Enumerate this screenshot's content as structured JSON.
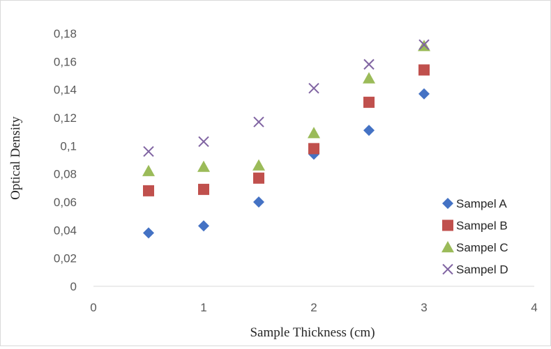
{
  "chart_data": {
    "type": "scatter",
    "title": "",
    "xlabel": "Sample Thickness (cm)",
    "ylabel": "Optical Density",
    "xlim": [
      0,
      4
    ],
    "ylim": [
      0,
      0.18
    ],
    "x_ticks": [
      "0",
      "1",
      "2",
      "3",
      "4"
    ],
    "y_ticks": [
      "0",
      "0,02",
      "0,04",
      "0,06",
      "0,08",
      "0,1",
      "0,12",
      "0,14",
      "0,16",
      "0,18"
    ],
    "grid": false,
    "legend_position": "bottom-right",
    "series": [
      {
        "name": "Sampel A",
        "marker": "diamond",
        "color": "#4472C4",
        "x": [
          0.5,
          1,
          1.5,
          2,
          2.5,
          3
        ],
        "y": [
          0.038,
          0.043,
          0.06,
          0.094,
          0.111,
          0.137
        ]
      },
      {
        "name": "Sampel B",
        "marker": "square",
        "color": "#C0504D",
        "x": [
          0.5,
          1,
          1.5,
          2,
          2.5,
          3
        ],
        "y": [
          0.068,
          0.069,
          0.077,
          0.098,
          0.131,
          0.154
        ]
      },
      {
        "name": "Sampel C",
        "marker": "triangle",
        "color": "#9BBB59",
        "x": [
          0.5,
          1,
          1.5,
          2,
          2.5,
          3
        ],
        "y": [
          0.082,
          0.085,
          0.086,
          0.109,
          0.148,
          0.171
        ]
      },
      {
        "name": "Sampel D",
        "marker": "x",
        "color": "#8064A2",
        "x": [
          0.5,
          1,
          1.5,
          2,
          2.5,
          3
        ],
        "y": [
          0.096,
          0.103,
          0.117,
          0.141,
          0.158,
          0.172
        ]
      }
    ]
  }
}
